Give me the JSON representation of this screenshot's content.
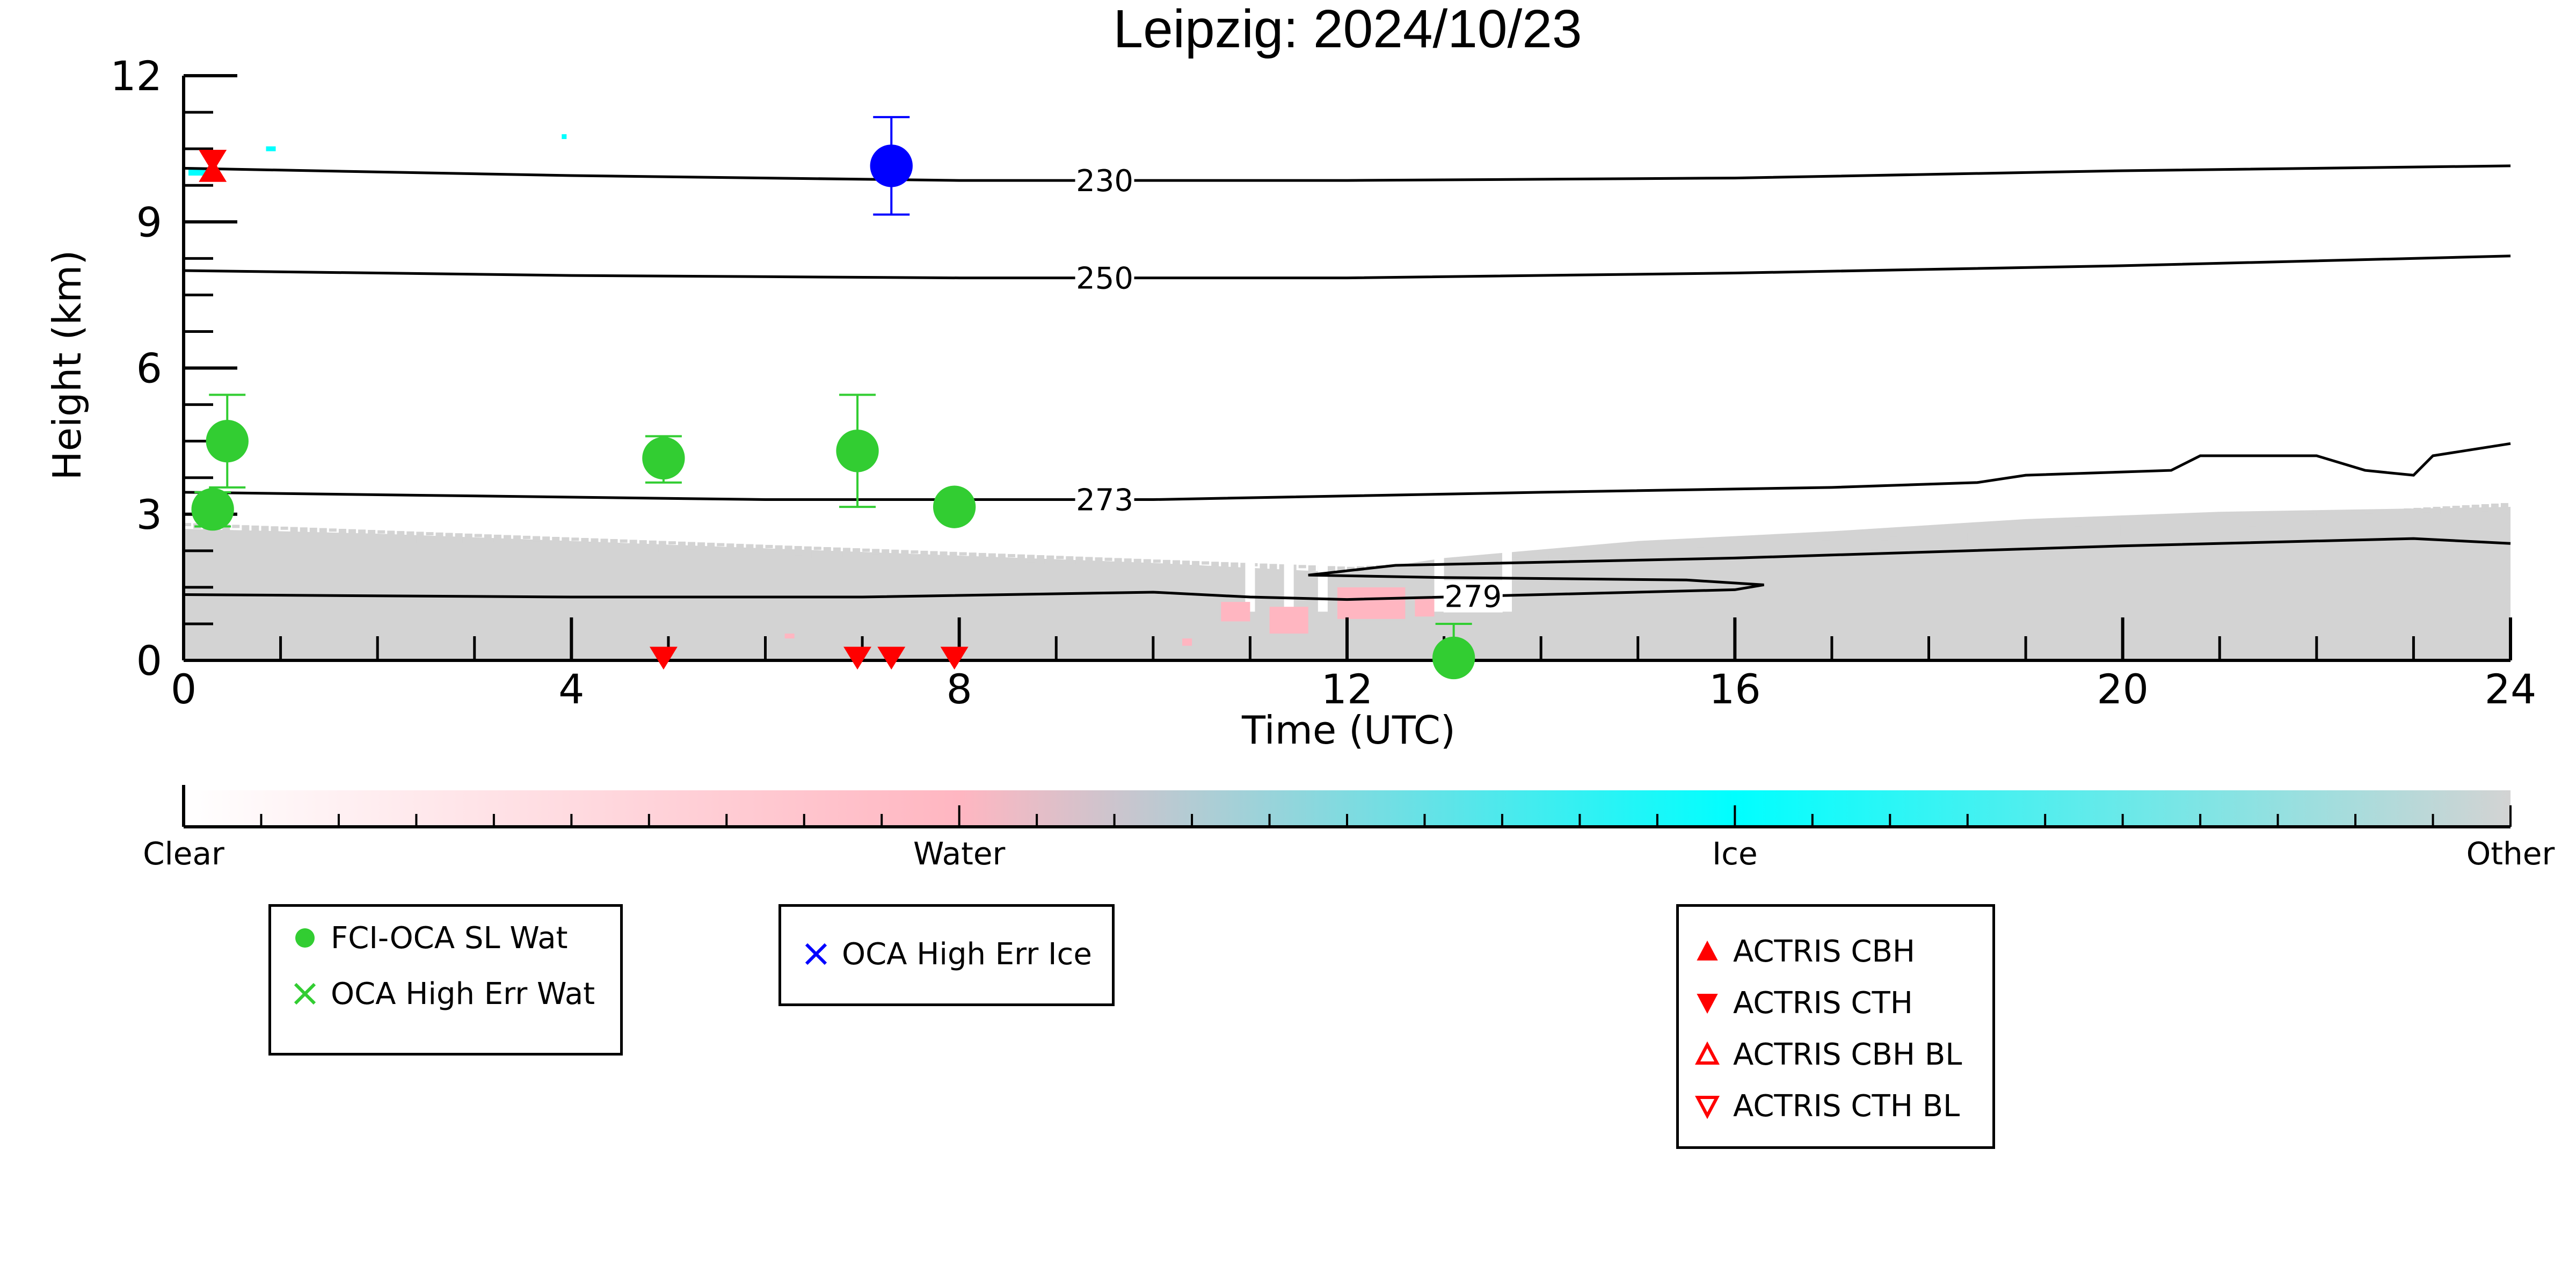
{
  "chart_data": {
    "type": "scatter",
    "title": "Leipzig: 2024/10/23",
    "xlabel": "Time (UTC)",
    "ylabel": "Height (km)",
    "xlim": [
      0,
      24
    ],
    "ylim": [
      0,
      12
    ],
    "x_ticks": [
      0,
      4,
      8,
      12,
      16,
      20,
      24
    ],
    "y_ticks": [
      0,
      3,
      6,
      9,
      12
    ],
    "background": "cloud phase mask: mostly 'Other' (grey) below ~3 km, sparse 'Water' (pink) near 1 km around 11-13 UTC, small 'Ice' (cyan) patches near 10-11 km before 1 UTC",
    "contours": [
      {
        "label": "230",
        "points": [
          [
            0,
            10.1
          ],
          [
            4,
            9.95
          ],
          [
            8,
            9.85
          ],
          [
            12,
            9.85
          ],
          [
            16,
            9.9
          ],
          [
            20,
            10.05
          ],
          [
            24,
            10.15
          ]
        ]
      },
      {
        "label": "250",
        "points": [
          [
            0,
            8.0
          ],
          [
            4,
            7.9
          ],
          [
            8,
            7.85
          ],
          [
            12,
            7.85
          ],
          [
            16,
            7.95
          ],
          [
            20,
            8.1
          ],
          [
            24,
            8.3
          ]
        ]
      },
      {
        "label": "273",
        "points": [
          [
            0,
            3.45
          ],
          [
            2,
            3.4
          ],
          [
            6,
            3.3
          ],
          [
            10,
            3.3
          ],
          [
            14,
            3.45
          ],
          [
            17,
            3.55
          ],
          [
            18.5,
            3.65
          ],
          [
            19,
            3.8
          ],
          [
            20.5,
            3.9
          ],
          [
            20.8,
            4.2
          ],
          [
            22,
            4.2
          ],
          [
            22.5,
            3.9
          ],
          [
            23,
            3.8
          ],
          [
            23.2,
            4.2
          ],
          [
            24,
            4.45
          ]
        ]
      },
      {
        "label": "279",
        "points": [
          [
            0,
            1.35
          ],
          [
            4,
            1.3
          ],
          [
            7,
            1.3
          ],
          [
            10,
            1.4
          ],
          [
            11,
            1.3
          ],
          [
            12,
            1.25
          ],
          [
            14,
            1.35
          ],
          [
            16,
            1.45
          ],
          [
            16.3,
            1.55
          ],
          [
            15.5,
            1.65
          ],
          [
            13,
            1.7
          ],
          [
            11.6,
            1.75
          ],
          [
            12.5,
            1.95
          ],
          [
            16,
            2.1
          ],
          [
            20,
            2.35
          ],
          [
            23,
            2.5
          ],
          [
            24,
            2.4
          ]
        ]
      }
    ],
    "series": [
      {
        "name": "FCI-OCA SL Wat",
        "color": "#32cd32",
        "marker": "circle",
        "points": [
          {
            "x": 0.3,
            "y": 3.1,
            "err_low": 2.75,
            "err_high": 3.45
          },
          {
            "x": 0.45,
            "y": 4.5,
            "err_low": 3.55,
            "err_high": 5.45
          },
          {
            "x": 4.95,
            "y": 4.15,
            "err_low": 3.65,
            "err_high": 4.6
          },
          {
            "x": 6.95,
            "y": 4.3,
            "err_low": 3.15,
            "err_high": 5.45
          },
          {
            "x": 7.95,
            "y": 3.15,
            "err_low": 3.05,
            "err_high": 3.25
          },
          {
            "x": 13.1,
            "y": 0.05,
            "err_low": 0.0,
            "err_high": 0.75
          }
        ]
      },
      {
        "name": "OCA High Err Wat",
        "color": "#32cd32",
        "marker": "x",
        "points": []
      },
      {
        "name": "OCA High Err Ice",
        "color": "#0000ff",
        "marker": "x",
        "points": [
          {
            "x": 7.3,
            "y": 10.15,
            "err_low": 9.15,
            "err_high": 11.15
          }
        ]
      },
      {
        "name": "ACTRIS CBH",
        "color": "#ff0000",
        "marker": "triangle-up",
        "points": [
          {
            "x": 0.3,
            "y": 10.05
          }
        ]
      },
      {
        "name": "ACTRIS CTH",
        "color": "#ff0000",
        "marker": "triangle-down",
        "points": [
          {
            "x": 0.3,
            "y": 10.25
          },
          {
            "x": 4.95,
            "y": 0.05
          },
          {
            "x": 6.95,
            "y": 0.05
          },
          {
            "x": 7.3,
            "y": 0.05
          },
          {
            "x": 7.95,
            "y": 0.05
          }
        ]
      },
      {
        "name": "ACTRIS CBH BL",
        "color": "#ff0000",
        "marker": "triangle-up-open",
        "points": []
      },
      {
        "name": "ACTRIS CTH BL",
        "color": "#ff0000",
        "marker": "triangle-down-open",
        "points": []
      }
    ],
    "colorbar": {
      "labels": [
        "Clear",
        "Water",
        "Ice",
        "Other"
      ],
      "colors": [
        "#ffffff",
        "#ffb6c1",
        "#00ffff",
        "#d3d3d3"
      ]
    }
  },
  "legends": [
    {
      "entries": [
        {
          "label": "FCI-OCA SL Wat",
          "marker": "circle",
          "color": "#32cd32"
        },
        {
          "label": "OCA High Err Wat",
          "marker": "x",
          "color": "#32cd32"
        }
      ]
    },
    {
      "entries": [
        {
          "label": "OCA High Err Ice",
          "marker": "x",
          "color": "#0000ff"
        }
      ]
    },
    {
      "entries": [
        {
          "label": "ACTRIS CBH",
          "marker": "triangle-up",
          "color": "#ff0000"
        },
        {
          "label": "ACTRIS CTH",
          "marker": "triangle-down",
          "color": "#ff0000"
        },
        {
          "label": "ACTRIS CBH BL",
          "marker": "triangle-up-open",
          "color": "#ff0000"
        },
        {
          "label": "ACTRIS CTH BL",
          "marker": "triangle-down-open",
          "color": "#ff0000"
        }
      ]
    }
  ]
}
